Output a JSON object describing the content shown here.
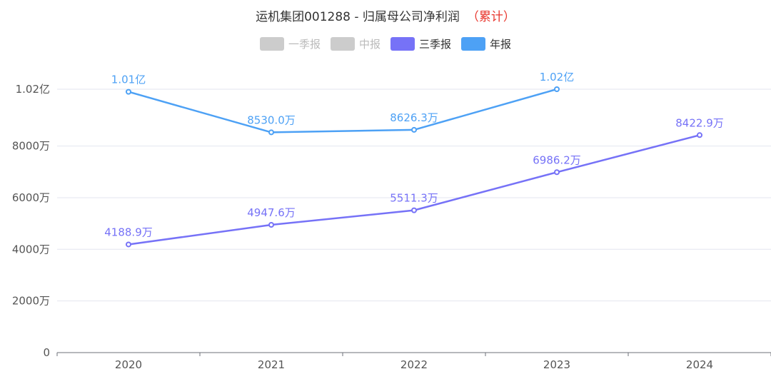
{
  "title": {
    "main": "运机集团001288 - 归属母公司净利润",
    "accum": "（累计）"
  },
  "legend": [
    {
      "label": "一季报",
      "color": "#cccccc",
      "active": false
    },
    {
      "label": "中报",
      "color": "#cccccc",
      "active": false
    },
    {
      "label": "三季报",
      "color": "#7672f7",
      "active": true
    },
    {
      "label": "年报",
      "color": "#4da1f5",
      "active": true
    }
  ],
  "chart_data": {
    "type": "line",
    "categories": [
      "2020",
      "2021",
      "2022",
      "2023",
      "2024"
    ],
    "y_ticks": [
      "0",
      "2000万",
      "4000万",
      "6000万",
      "8000万",
      "1.02亿"
    ],
    "y_tick_values": [
      0,
      2000,
      4000,
      6000,
      8000,
      10200
    ],
    "ylim": [
      0,
      10200
    ],
    "grid": true,
    "series": [
      {
        "name": "年报",
        "color": "#4da1f5",
        "values": [
          10100,
          8530.0,
          8626.3,
          10200,
          null
        ],
        "labels": [
          "1.01亿",
          "8530.0万",
          "8626.3万",
          "1.02亿",
          null
        ]
      },
      {
        "name": "三季报",
        "color": "#7672f7",
        "values": [
          4188.9,
          4947.6,
          5511.3,
          6986.2,
          8422.9
        ],
        "labels": [
          "4188.9万",
          "4947.6万",
          "5511.3万",
          "6986.2万",
          "8422.9万"
        ]
      }
    ]
  }
}
